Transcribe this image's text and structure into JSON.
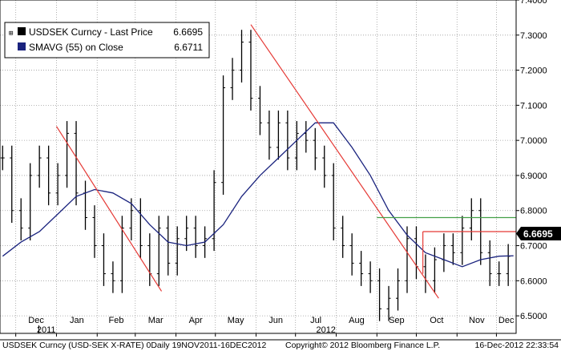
{
  "chart_data": {
    "type": "line",
    "title": "",
    "xlabel": "",
    "ylabel": "",
    "ylim": [
      6.45,
      7.4
    ],
    "y_ticks": [
      "6.5000",
      "6.6000",
      "6.7000",
      "6.8000",
      "6.9000",
      "7.0000",
      "7.1000",
      "7.2000",
      "7.3000",
      "7.4000"
    ],
    "x_ticks": [
      {
        "label": "Dec",
        "date": "2011-12-01"
      },
      {
        "label": "Jan",
        "date": "2012-01-01"
      },
      {
        "label": "Feb",
        "date": "2012-02-01"
      },
      {
        "label": "Mar",
        "date": "2012-03-01"
      },
      {
        "label": "Apr",
        "date": "2012-04-01"
      },
      {
        "label": "May",
        "date": "2012-05-01"
      },
      {
        "label": "Jun",
        "date": "2012-06-01"
      },
      {
        "label": "Jul",
        "date": "2012-07-01"
      },
      {
        "label": "Aug",
        "date": "2012-08-01"
      },
      {
        "label": "Sep",
        "date": "2012-09-01"
      },
      {
        "label": "Oct",
        "date": "2012-10-01"
      },
      {
        "label": "Nov",
        "date": "2012-11-01"
      },
      {
        "label": "Dec",
        "date": "2012-12-01"
      }
    ],
    "year_labels": [
      {
        "label": "2011",
        "date": "2011-12-01"
      },
      {
        "label": "2012",
        "date": "2012-07-01"
      }
    ],
    "x_range": [
      "2011-11-19",
      "2012-12-16"
    ],
    "grid": true,
    "legend": {
      "position": "top-left",
      "entries": [
        {
          "label": "USDSEK Curncy - Last Price",
          "value": "6.6695",
          "color": "#000000"
        },
        {
          "label": "SMAVG (55) on Close",
          "value": "6.6711",
          "color": "#1a237e"
        }
      ]
    },
    "last_price_label": "6.6695",
    "series": [
      {
        "name": "USDSEK Curncy - Last Price",
        "style": "ohlc",
        "color": "#000000",
        "x": [
          "2011-11-21",
          "2011-11-28",
          "2011-12-05",
          "2011-12-12",
          "2011-12-19",
          "2011-12-26",
          "2012-01-02",
          "2012-01-09",
          "2012-01-16",
          "2012-01-23",
          "2012-01-30",
          "2012-02-06",
          "2012-02-13",
          "2012-02-20",
          "2012-02-27",
          "2012-03-05",
          "2012-03-12",
          "2012-03-19",
          "2012-03-26",
          "2012-04-02",
          "2012-04-09",
          "2012-04-16",
          "2012-04-23",
          "2012-04-30",
          "2012-05-07",
          "2012-05-14",
          "2012-05-21",
          "2012-05-28",
          "2012-06-04",
          "2012-06-11",
          "2012-06-18",
          "2012-06-25",
          "2012-07-02",
          "2012-07-09",
          "2012-07-16",
          "2012-07-23",
          "2012-07-30",
          "2012-08-06",
          "2012-08-13",
          "2012-08-20",
          "2012-08-27",
          "2012-09-03",
          "2012-09-10",
          "2012-09-17",
          "2012-09-24",
          "2012-10-01",
          "2012-10-08",
          "2012-10-15",
          "2012-10-22",
          "2012-10-29",
          "2012-11-05",
          "2012-11-12",
          "2012-11-19",
          "2012-11-26",
          "2012-12-03",
          "2012-12-10"
        ],
        "values": [
          6.95,
          6.8,
          6.75,
          6.9,
          6.95,
          6.85,
          6.9,
          7.02,
          6.85,
          6.78,
          6.7,
          6.62,
          6.6,
          6.75,
          6.8,
          6.7,
          6.62,
          6.75,
          6.65,
          6.72,
          6.75,
          6.7,
          6.72,
          6.88,
          7.15,
          7.2,
          7.28,
          7.12,
          7.05,
          6.98,
          7.05,
          6.95,
          7.02,
          7.0,
          6.95,
          6.9,
          6.75,
          6.7,
          6.65,
          6.62,
          6.6,
          6.52,
          6.55,
          6.6,
          6.72,
          6.64,
          6.6,
          6.66,
          6.7,
          6.68,
          6.75,
          6.8,
          6.68,
          6.62,
          6.62,
          6.6695
        ]
      },
      {
        "name": "SMAVG (55) on Close",
        "style": "line",
        "color": "#1a237e",
        "x": [
          "2011-11-21",
          "2011-12-05",
          "2011-12-19",
          "2012-01-02",
          "2012-01-16",
          "2012-01-30",
          "2012-02-13",
          "2012-02-27",
          "2012-03-12",
          "2012-03-26",
          "2012-04-09",
          "2012-04-23",
          "2012-05-07",
          "2012-05-21",
          "2012-06-04",
          "2012-06-18",
          "2012-07-02",
          "2012-07-16",
          "2012-07-30",
          "2012-08-13",
          "2012-08-27",
          "2012-09-10",
          "2012-09-24",
          "2012-10-08",
          "2012-10-22",
          "2012-11-05",
          "2012-11-19",
          "2012-12-03",
          "2012-12-14"
        ],
        "values": [
          6.67,
          6.71,
          6.74,
          6.79,
          6.84,
          6.86,
          6.85,
          6.82,
          6.76,
          6.71,
          6.7,
          6.71,
          6.76,
          6.84,
          6.9,
          6.95,
          7.0,
          7.05,
          7.05,
          6.98,
          6.9,
          6.8,
          6.73,
          6.68,
          6.66,
          6.64,
          6.66,
          6.67,
          6.6711
        ]
      }
    ],
    "annotations": [
      {
        "type": "trendline",
        "color": "#e53935",
        "x": [
          "2012-01-01",
          "2012-03-21"
        ],
        "y": [
          7.04,
          6.57
        ]
      },
      {
        "type": "trendline",
        "color": "#e53935",
        "x": [
          "2012-05-28",
          "2012-10-18"
        ],
        "y": [
          7.33,
          6.55
        ]
      },
      {
        "type": "hline",
        "color": "#43a047",
        "x": [
          "2012-09-01",
          "2012-12-16"
        ],
        "y": 6.78
      },
      {
        "type": "hline",
        "color": "#e53935",
        "x": [
          "2012-10-06",
          "2012-12-16"
        ],
        "y": 6.74
      },
      {
        "type": "vline",
        "color": "#e53935",
        "x": "2012-10-06",
        "y": [
          6.74,
          6.62
        ]
      }
    ]
  },
  "footer": {
    "left": "USDSEK Curncy (USD-SEK X-RATE) 0Daily 19NOV2011-16DEC2012",
    "center": "Copyright© 2012 Bloomberg Finance L.P.",
    "right": "16-Dec-2012 22:33:54"
  }
}
